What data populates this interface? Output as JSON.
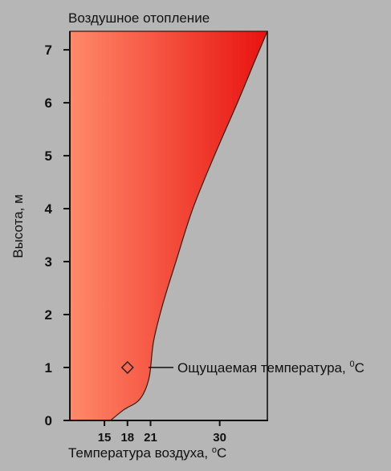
{
  "chart_data": {
    "type": "area",
    "title": "Воздушное отопление",
    "xlabel": "Температура воздуха, ",
    "xlabel_unit": "°C",
    "xlabel_unit_sup": "o",
    "xlabel_unit_letter": "C",
    "ylabel": "Высота, м",
    "xlim": [
      10.5,
      36.2
    ],
    "ylim": [
      0,
      7.35
    ],
    "x_ticks": [
      15,
      18,
      21,
      30
    ],
    "x_tick_labels": [
      "15",
      "18",
      "21",
      "30"
    ],
    "y_ticks": [
      0,
      1,
      2,
      3,
      4,
      5,
      6,
      7
    ],
    "y_tick_labels": [
      "0",
      "1",
      "2",
      "3",
      "4",
      "5",
      "6",
      "7"
    ],
    "grid": false,
    "series": [
      {
        "fill_color_start": "#ff8a6a",
        "fill_color_end": "#e8120f",
        "points": [
          {
            "x": 15.8,
            "y": 0.0
          },
          {
            "x": 17.5,
            "y": 0.2
          },
          {
            "x": 19.6,
            "y": 0.4
          },
          {
            "x": 20.8,
            "y": 0.8
          },
          {
            "x": 21.4,
            "y": 1.5
          },
          {
            "x": 22.6,
            "y": 2.2
          },
          {
            "x": 24.3,
            "y": 3.0
          },
          {
            "x": 26.5,
            "y": 4.0
          },
          {
            "x": 29.3,
            "y": 5.0
          },
          {
            "x": 32.3,
            "y": 6.0
          },
          {
            "x": 34.6,
            "y": 6.8
          },
          {
            "x": 36.2,
            "y": 7.35
          }
        ]
      }
    ],
    "annotation": {
      "marker": "diamond",
      "x": 18.0,
      "y": 1.0,
      "label_prefix": "Ощущаемая температура, ",
      "label_sup": "0",
      "label_unit": "C"
    }
  }
}
